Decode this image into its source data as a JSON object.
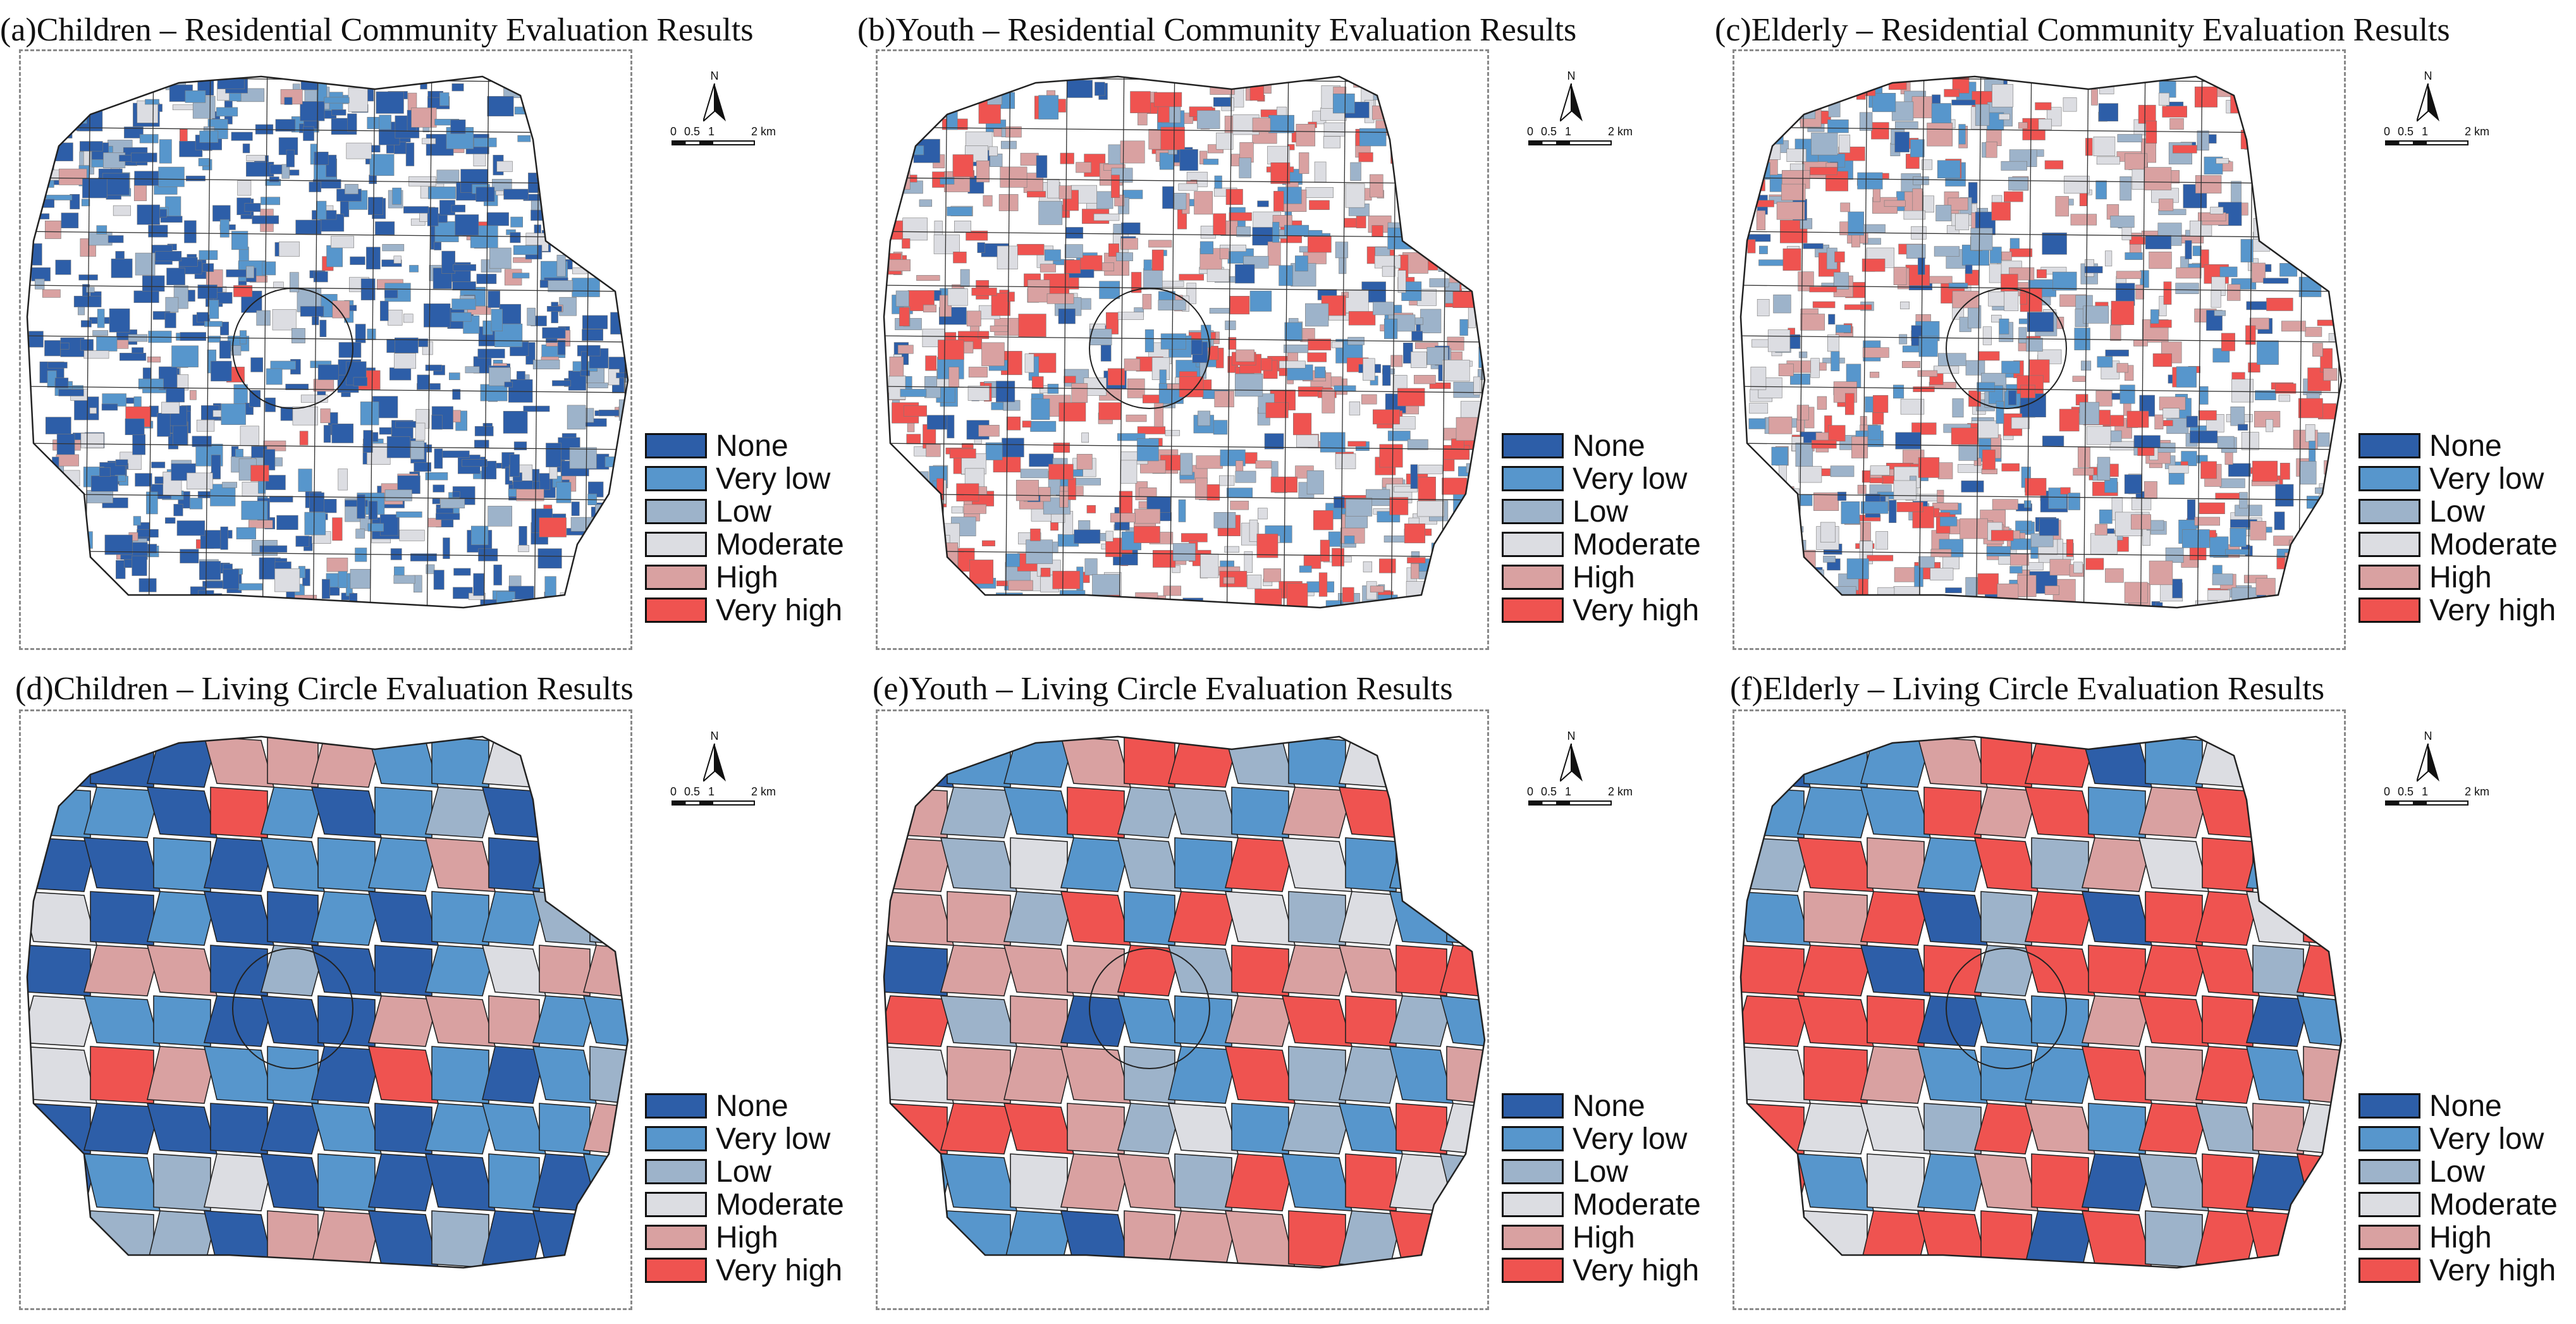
{
  "colors": {
    "none": "#2d5ea8",
    "very_low": "#5796cc",
    "low": "#9db3ca",
    "moderate": "#dcdde2",
    "high": "#d9a1a1",
    "very_high": "#ef5350",
    "boundary": "#222222",
    "frame": "#8a8a8a"
  },
  "legend": [
    "None",
    "Very low",
    "Low",
    "Moderate",
    "High",
    "Very high"
  ],
  "north_label": "N",
  "scale_labels": [
    "0",
    "0.5",
    "1",
    "2 km"
  ],
  "panels": [
    {
      "id": "a",
      "title": "(a)Children – Residential Community Evaluation Results",
      "type": "community",
      "group": "Children",
      "palette_bias": [
        0.55,
        0.2,
        0.1,
        0.07,
        0.05,
        0.03
      ]
    },
    {
      "id": "b",
      "title": "(b)Youth – Residential Community Evaluation Results",
      "type": "community",
      "group": "Youth",
      "palette_bias": [
        0.08,
        0.15,
        0.15,
        0.17,
        0.2,
        0.25
      ]
    },
    {
      "id": "c",
      "title": "(c)Elderly – Residential Community Evaluation Results",
      "type": "community",
      "group": "Elderly",
      "palette_bias": [
        0.1,
        0.17,
        0.17,
        0.16,
        0.2,
        0.2
      ]
    },
    {
      "id": "d",
      "title": "(d)Children – Living Circle Evaluation Results",
      "type": "circle",
      "group": "Children",
      "cells": [
        "none",
        "none",
        "none",
        "high",
        "high",
        "high",
        "very_low",
        "very_low",
        "moderate",
        "very_high",
        "high",
        "very_low",
        "very_low",
        "none",
        "very_high",
        "very_low",
        "none",
        "very_low",
        "low",
        "none",
        "none",
        "none",
        "none",
        "none",
        "very_low",
        "none",
        "very_low",
        "very_low",
        "very_low",
        "high",
        "none",
        "very_low",
        "low",
        "moderate",
        "none",
        "very_low",
        "none",
        "none",
        "very_low",
        "none",
        "very_low",
        "very_low",
        "low",
        "low",
        "none",
        "high",
        "high",
        "none",
        "low",
        "none",
        "none",
        "very_low",
        "moderate",
        "high",
        "high",
        "moderate",
        "very_low",
        "very_low"
      ]
    },
    {
      "id": "e",
      "title": "(e)Youth – Living Circle Evaluation Results",
      "type": "circle",
      "group": "Youth",
      "cells": [
        "none",
        "very_low",
        "very_low",
        "high",
        "very_high",
        "very_high",
        "low",
        "very_low",
        "moderate",
        "high",
        "high",
        "high",
        "low",
        "very_low",
        "very_high",
        "low",
        "low",
        "very_low",
        "high",
        "very_high",
        "very_high",
        "very_high",
        "high",
        "low",
        "moderate",
        "very_low",
        "low",
        "very_low",
        "very_high",
        "moderate",
        "very_low",
        "very_low",
        "moderate",
        "high",
        "high",
        "low",
        "very_high",
        "very_low",
        "very_high",
        "moderate",
        "low",
        "moderate",
        "very_low",
        "very_low",
        "none",
        "high",
        "high",
        "high",
        "very_high",
        "low",
        "very_high",
        "high",
        "high",
        "very_high",
        "very_high",
        "very_high",
        "low",
        "high"
      ]
    },
    {
      "id": "f",
      "title": "(f)Elderly – Living Circle Evaluation Results",
      "type": "circle",
      "group": "Elderly",
      "cells": [
        "none",
        "very_low",
        "very_low",
        "high",
        "very_high",
        "very_high",
        "none",
        "very_low",
        "moderate",
        "very_high",
        "high",
        "very_low",
        "very_low",
        "very_low",
        "very_high",
        "high",
        "very_high",
        "very_low",
        "high",
        "very_high",
        "moderate",
        "moderate",
        "low",
        "very_high",
        "high",
        "very_low",
        "very_high",
        "low",
        "high",
        "moderate",
        "very_high",
        "very_low",
        "moderate",
        "very_low",
        "high",
        "very_high",
        "none",
        "low",
        "very_high",
        "none",
        "very_high",
        "very_high",
        "moderate",
        "very_high",
        "very_high",
        "very_high",
        "none",
        "very_high",
        "low",
        "very_high",
        "very_high",
        "very_high",
        "very_high",
        "low",
        "very_high",
        "very_high",
        "very_high",
        "very_high"
      ]
    }
  ]
}
